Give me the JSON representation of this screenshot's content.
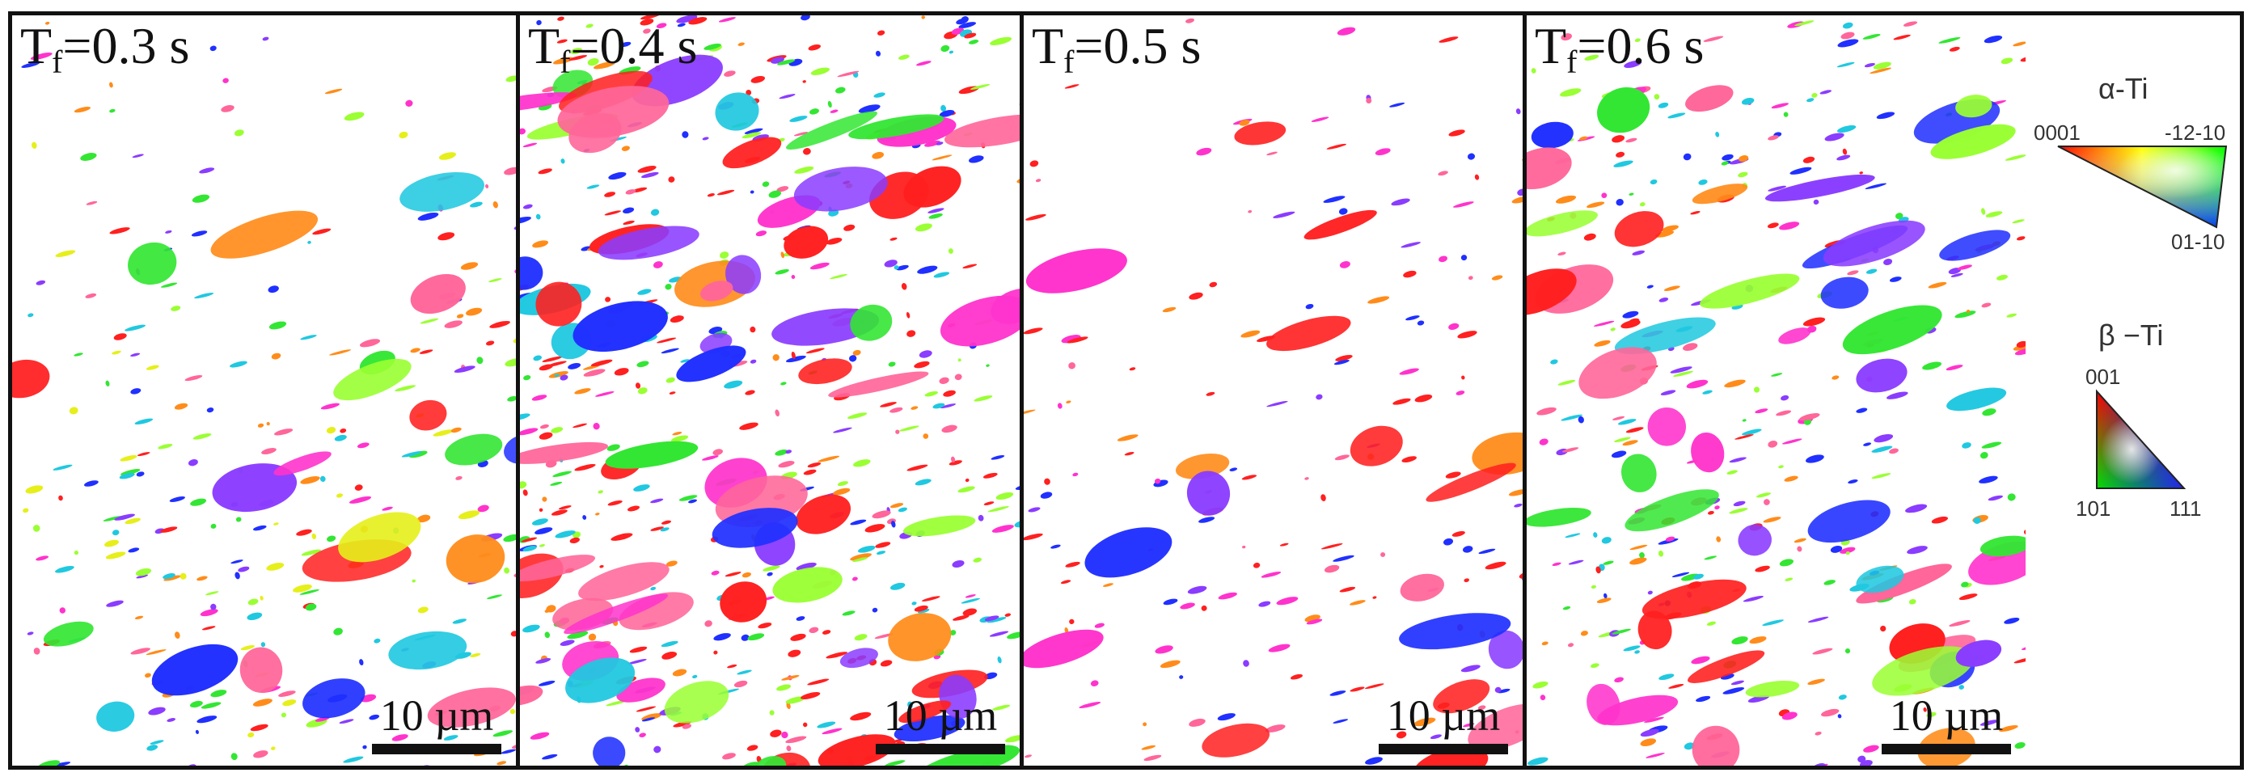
{
  "panels": [
    {
      "label_main": "T",
      "label_sub": "f",
      "label_rest": "=0.3 s",
      "scale": "10 µm"
    },
    {
      "label_main": "T",
      "label_sub": "f",
      "label_rest": "=0.4 s",
      "scale": "10 µm"
    },
    {
      "label_main": "T",
      "label_sub": "f",
      "label_rest": "=0.5 s",
      "scale": "10 µm"
    },
    {
      "label_main": "T",
      "label_sub": "f",
      "label_rest": "=0.6 s",
      "scale": "10 µm"
    }
  ],
  "legend": {
    "alpha": {
      "title": "α-Ti",
      "left": "0001",
      "right": "-12-10",
      "bottom": "01-10"
    },
    "beta": {
      "title": "β −Ti",
      "top": "001",
      "bottom_left": "101",
      "bottom_right": "111"
    }
  },
  "colors": {
    "red": "#ff2020",
    "magenta": "#ff33cc",
    "pink": "#ff6699",
    "orange": "#ff8c1a",
    "yellow": "#e6ef1a",
    "green": "#33e633",
    "cyan": "#20c8e0",
    "blue": "#2030ff",
    "violet": "#8a3cff",
    "lime": "#9aff33"
  }
}
